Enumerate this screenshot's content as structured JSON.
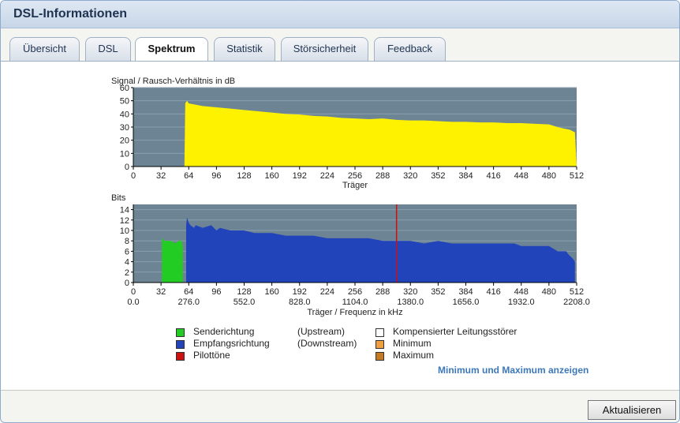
{
  "header": {
    "title": "DSL-Informationen"
  },
  "tabs": [
    {
      "label": "Übersicht",
      "active": false
    },
    {
      "label": "DSL",
      "active": false
    },
    {
      "label": "Spektrum",
      "active": true
    },
    {
      "label": "Statistik",
      "active": false
    },
    {
      "label": "Störsicherheit",
      "active": false
    },
    {
      "label": "Feedback",
      "active": false
    }
  ],
  "chart_data": [
    {
      "type": "area",
      "title": "Signal / Rausch-Verhältnis in dB",
      "xlabel": "Träger",
      "ylabel": "",
      "xlim": [
        0,
        512
      ],
      "ylim": [
        0,
        60
      ],
      "xticks": [
        0,
        32,
        64,
        96,
        128,
        160,
        192,
        224,
        256,
        288,
        320,
        352,
        384,
        416,
        448,
        480,
        512
      ],
      "yticks": [
        0,
        10,
        20,
        30,
        40,
        50,
        60
      ],
      "grid": true,
      "series": [
        {
          "color": "#fff200",
          "x": [
            0,
            59,
            60,
            62,
            64,
            80,
            96,
            112,
            128,
            144,
            160,
            176,
            192,
            208,
            224,
            240,
            256,
            272,
            288,
            304,
            320,
            336,
            352,
            368,
            384,
            400,
            416,
            432,
            448,
            464,
            480,
            490,
            496,
            504,
            510,
            512
          ],
          "y": [
            0,
            0,
            48,
            50,
            48,
            46,
            45,
            44,
            43,
            42,
            41,
            40,
            39.5,
            38.5,
            38,
            37,
            36.5,
            36,
            36.5,
            35.5,
            35,
            35,
            34.5,
            34,
            34,
            33.5,
            33.5,
            33,
            33,
            32.5,
            32,
            30,
            29,
            28,
            26,
            0
          ]
        }
      ]
    },
    {
      "type": "area",
      "title": "Bits",
      "xlabel": "Träger / Frequenz in kHz",
      "ylabel": "",
      "xlim": [
        0,
        512
      ],
      "ylim": [
        0,
        15
      ],
      "xticks": [
        0,
        32,
        64,
        96,
        128,
        160,
        192,
        224,
        256,
        288,
        320,
        352,
        384,
        416,
        448,
        480,
        512
      ],
      "freq_ticks": [
        "0.0",
        "276.0",
        "552.0",
        "828.0",
        "1104.0",
        "1380.0",
        "1656.0",
        "1932.0",
        "2208.0"
      ],
      "yticks": [
        0,
        2,
        4,
        6,
        8,
        10,
        12,
        14
      ],
      "grid": true,
      "pilot_tone": 304,
      "series": [
        {
          "name": "Senderichtung",
          "color": "#22cc22",
          "x": [
            33,
            33,
            34,
            36,
            40,
            44,
            48,
            52,
            56,
            57,
            57
          ],
          "y": [
            0,
            8,
            8.5,
            8,
            8,
            8,
            7.5,
            8,
            8,
            7,
            0
          ]
        },
        {
          "name": "Empfangsrichtung",
          "color": "#2244bb",
          "x": [
            61,
            61,
            62,
            63,
            64,
            66,
            70,
            72,
            80,
            90,
            96,
            100,
            112,
            124,
            128,
            140,
            144,
            160,
            176,
            184,
            192,
            208,
            224,
            240,
            256,
            272,
            288,
            304,
            320,
            336,
            352,
            368,
            384,
            400,
            416,
            440,
            448,
            464,
            470,
            480,
            490,
            500,
            502,
            505,
            508,
            510,
            510
          ],
          "y": [
            0,
            11,
            12.5,
            12,
            11.5,
            11,
            10.5,
            11,
            10.5,
            11,
            10,
            10.5,
            10,
            10,
            10,
            9.5,
            9.5,
            9.5,
            9,
            9,
            9,
            9,
            8.5,
            8.5,
            8.5,
            8.5,
            8,
            8,
            8,
            7.5,
            8,
            7.5,
            7.5,
            7.5,
            7.5,
            7.5,
            7,
            7,
            7,
            7,
            6,
            6,
            5.5,
            5,
            4.5,
            4,
            0
          ]
        }
      ]
    }
  ],
  "legend": {
    "items": [
      {
        "label": "Senderichtung",
        "qualifier": "(Upstream)",
        "color": "#22cc22"
      },
      {
        "label": "Empfangsrichtung",
        "qualifier": "(Downstream)",
        "color": "#2244bb"
      },
      {
        "label": "Pilottöne",
        "qualifier": "",
        "color": "#cc1111"
      },
      {
        "label": "Kompensierter Leitungsstörer",
        "qualifier": "",
        "color": "#ffffff"
      },
      {
        "label": "Minimum",
        "qualifier": "",
        "color": "#f0a040"
      },
      {
        "label": "Maximum",
        "qualifier": "",
        "color": "#c57a25"
      }
    ]
  },
  "actions": {
    "show_minmax_link": "Minimum und Maximum anzeigen",
    "refresh_button": "Aktualisieren"
  }
}
